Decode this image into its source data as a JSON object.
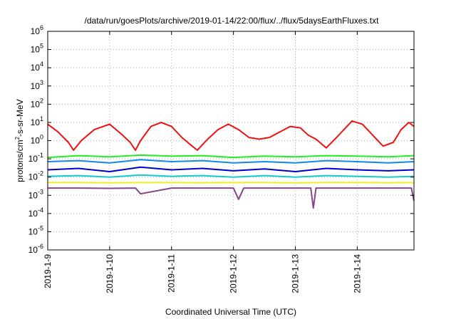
{
  "chart_data": {
    "type": "line",
    "title": "/data/run/goesPlots/archive/2019-01-14/22:00/flux/../flux/5daysEarthFluxes.txt",
    "xlabel": "Coordinated Universal Time (UTC)",
    "ylabel": "protons/cm²-s-sr-MeV",
    "ylabel_parts": {
      "before": "protons/cm",
      "sup": "2",
      "after": "-s-sr-MeV"
    },
    "log_y": true,
    "grid": true,
    "ylim": [
      1e-06,
      1000000.0
    ],
    "xlim": [
      "2019-01-09",
      "2019-01-14T22:00"
    ],
    "x_ticks": [
      "2019-1-9",
      "2019-1-10",
      "2019-1-11",
      "2019-1-12",
      "2019-1-13",
      "2019-1-14"
    ],
    "y_ticks": [
      {
        "base": "10",
        "exp": "-6"
      },
      {
        "base": "10",
        "exp": "-5"
      },
      {
        "base": "10",
        "exp": "-4"
      },
      {
        "base": "10",
        "exp": "-3"
      },
      {
        "base": "10",
        "exp": "-2"
      },
      {
        "base": "10",
        "exp": "-1"
      },
      {
        "base": "10",
        "exp": "0"
      },
      {
        "base": "10",
        "exp": "1"
      },
      {
        "base": "10",
        "exp": "2"
      },
      {
        "base": "10",
        "exp": "3"
      },
      {
        "base": "10",
        "exp": "4"
      },
      {
        "base": "10",
        "exp": "5"
      },
      {
        "base": "10",
        "exp": "6"
      }
    ],
    "series": [
      {
        "color": "#ee1111",
        "x": [
          "2019-01-09T00:00",
          "2019-01-09T04:00",
          "2019-01-09T08:00",
          "2019-01-09T10:00",
          "2019-01-09T13:00",
          "2019-01-09T18:00",
          "2019-01-10T00:00",
          "2019-01-10T05:00",
          "2019-01-10T08:00",
          "2019-01-10T10:00",
          "2019-01-10T12:00",
          "2019-01-10T16:00",
          "2019-01-10T20:00",
          "2019-01-11T00:00",
          "2019-01-11T04:00",
          "2019-01-11T08:00",
          "2019-01-11T10:00",
          "2019-01-11T14:00",
          "2019-01-11T18:00",
          "2019-01-11T22:00",
          "2019-01-12T02:00",
          "2019-01-12T06:00",
          "2019-01-12T10:00",
          "2019-01-12T14:00",
          "2019-01-12T18:00",
          "2019-01-12T22:00",
          "2019-01-13T02:00",
          "2019-01-13T05:00",
          "2019-01-13T08:00",
          "2019-01-13T12:00",
          "2019-01-13T16:00",
          "2019-01-13T20:00",
          "2019-01-13T22:00",
          "2019-01-14T02:00",
          "2019-01-14T06:00",
          "2019-01-14T10:00",
          "2019-01-14T14:00",
          "2019-01-14T17:00",
          "2019-01-14T20:00",
          "2019-01-14T22:00"
        ],
        "values": [
          8,
          3,
          0.8,
          0.3,
          1,
          4,
          8,
          2,
          0.8,
          0.3,
          1,
          6,
          10,
          6,
          1.5,
          0.5,
          0.3,
          1.2,
          4,
          8,
          4,
          1.5,
          1.2,
          1.5,
          3,
          6,
          5,
          2,
          1.2,
          0.4,
          1.5,
          6,
          12,
          8,
          2,
          0.5,
          0.8,
          4,
          10,
          6
        ]
      },
      {
        "color": "#22ee22",
        "x": [
          "2019-01-09T00:00",
          "2019-01-09T12:00",
          "2019-01-10T00:00",
          "2019-01-10T12:00",
          "2019-01-11T00:00",
          "2019-01-11T12:00",
          "2019-01-12T00:00",
          "2019-01-12T12:00",
          "2019-01-13T00:00",
          "2019-01-13T12:00",
          "2019-01-14T00:00",
          "2019-01-14T12:00",
          "2019-01-14T22:00"
        ],
        "values": [
          0.12,
          0.15,
          0.13,
          0.16,
          0.14,
          0.15,
          0.12,
          0.14,
          0.13,
          0.15,
          0.14,
          0.13,
          0.15
        ]
      },
      {
        "color": "#1188ee",
        "x": [
          "2019-01-09T00:00",
          "2019-01-09T12:00",
          "2019-01-10T00:00",
          "2019-01-10T12:00",
          "2019-01-11T00:00",
          "2019-01-11T12:00",
          "2019-01-12T00:00",
          "2019-01-12T12:00",
          "2019-01-13T00:00",
          "2019-01-13T12:00",
          "2019-01-14T00:00",
          "2019-01-14T12:00",
          "2019-01-14T22:00"
        ],
        "values": [
          0.07,
          0.08,
          0.06,
          0.09,
          0.07,
          0.08,
          0.06,
          0.07,
          0.06,
          0.08,
          0.07,
          0.06,
          0.07
        ]
      },
      {
        "color": "#0000cc",
        "x": [
          "2019-01-09T00:00",
          "2019-01-09T12:00",
          "2019-01-10T00:00",
          "2019-01-10T12:00",
          "2019-01-11T00:00",
          "2019-01-11T12:00",
          "2019-01-12T00:00",
          "2019-01-12T12:00",
          "2019-01-13T00:00",
          "2019-01-13T12:00",
          "2019-01-14T00:00",
          "2019-01-14T12:00",
          "2019-01-14T22:00"
        ],
        "values": [
          0.025,
          0.03,
          0.02,
          0.035,
          0.025,
          0.03,
          0.022,
          0.028,
          0.02,
          0.03,
          0.025,
          0.022,
          0.025
        ]
      },
      {
        "color": "#11cccc",
        "x": [
          "2019-01-09T00:00",
          "2019-01-09T12:00",
          "2019-01-10T00:00",
          "2019-01-10T12:00",
          "2019-01-11T00:00",
          "2019-01-11T12:00",
          "2019-01-12T00:00",
          "2019-01-12T12:00",
          "2019-01-13T00:00",
          "2019-01-13T12:00",
          "2019-01-14T00:00",
          "2019-01-14T12:00",
          "2019-01-14T22:00"
        ],
        "values": [
          0.011,
          0.012,
          0.01,
          0.013,
          0.011,
          0.012,
          0.01,
          0.012,
          0.01,
          0.012,
          0.011,
          0.01,
          0.011
        ]
      },
      {
        "color": "#eeee22",
        "x": [
          "2019-01-09T00:00",
          "2019-01-09T12:00",
          "2019-01-10T00:00",
          "2019-01-10T12:00",
          "2019-01-11T00:00",
          "2019-01-11T12:00",
          "2019-01-12T00:00",
          "2019-01-12T12:00",
          "2019-01-13T00:00",
          "2019-01-13T12:00",
          "2019-01-14T00:00",
          "2019-01-14T12:00",
          "2019-01-14T22:00"
        ],
        "values": [
          0.005,
          0.005,
          0.0048,
          0.005,
          0.005,
          0.0049,
          0.005,
          0.005,
          0.0048,
          0.005,
          0.005,
          0.0049,
          0.005
        ]
      },
      {
        "color": "#884488",
        "x": [
          "2019-01-09T00:00",
          "2019-01-09T12:00",
          "2019-01-10T00:00",
          "2019-01-10T10:00",
          "2019-01-10T12:00",
          "2019-01-11T00:00",
          "2019-01-11T12:00",
          "2019-01-12T00:00",
          "2019-01-12T02:00",
          "2019-01-12T04:00",
          "2019-01-12T12:00",
          "2019-01-13T00:00",
          "2019-01-13T06:00",
          "2019-01-13T07:00",
          "2019-01-13T08:00",
          "2019-01-13T12:00",
          "2019-01-14T00:00",
          "2019-01-14T12:00",
          "2019-01-14T21:00",
          "2019-01-14T22:00"
        ],
        "values": [
          0.0025,
          0.0025,
          0.0024,
          0.0025,
          0.0012,
          0.0025,
          0.0025,
          0.0025,
          0.0006,
          0.0025,
          0.0025,
          0.0025,
          0.0025,
          0.0002,
          0.0025,
          0.0025,
          0.0025,
          0.0025,
          0.0025,
          0.0005
        ]
      }
    ]
  }
}
